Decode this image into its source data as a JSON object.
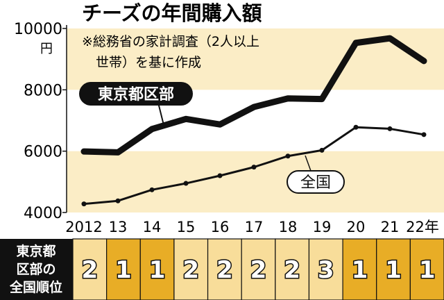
{
  "colors": {
    "band": "#fbedc6",
    "rank_first": "#e8ad26",
    "rank_other": "#f8dd9a",
    "line_tokyo": "#111111",
    "line_national": "#111111"
  },
  "chart_data": {
    "type": "line",
    "title": "チーズの年間購入額",
    "note_lines": [
      "※総務省の家計調査（2人以上",
      "世帯）を基に作成"
    ],
    "yunit": "円",
    "ylim": [
      4000,
      10000
    ],
    "yticks": [
      4000,
      6000,
      8000,
      10000
    ],
    "ytick_labels": [
      "4000",
      "6000",
      "8000",
      "10000"
    ],
    "grid": false,
    "categories": [
      "2012",
      "13",
      "14",
      "15",
      "16",
      "17",
      "18",
      "19",
      "20",
      "21",
      "22年"
    ],
    "series": [
      {
        "name": "東京都区部",
        "values": [
          5990,
          5960,
          6720,
          7050,
          6870,
          7440,
          7720,
          7700,
          9530,
          9680,
          8940
        ]
      },
      {
        "name": "全国",
        "values": [
          4280,
          4380,
          4740,
          4950,
          5200,
          5480,
          5840,
          6030,
          6780,
          6730,
          6540
        ]
      }
    ],
    "rank_table": {
      "header": [
        "東京都",
        "区部の",
        "全国順位"
      ],
      "ranks": [
        "2",
        "1",
        "1",
        "2",
        "2",
        "2",
        "2",
        "3",
        "1",
        "1",
        "1"
      ]
    }
  }
}
